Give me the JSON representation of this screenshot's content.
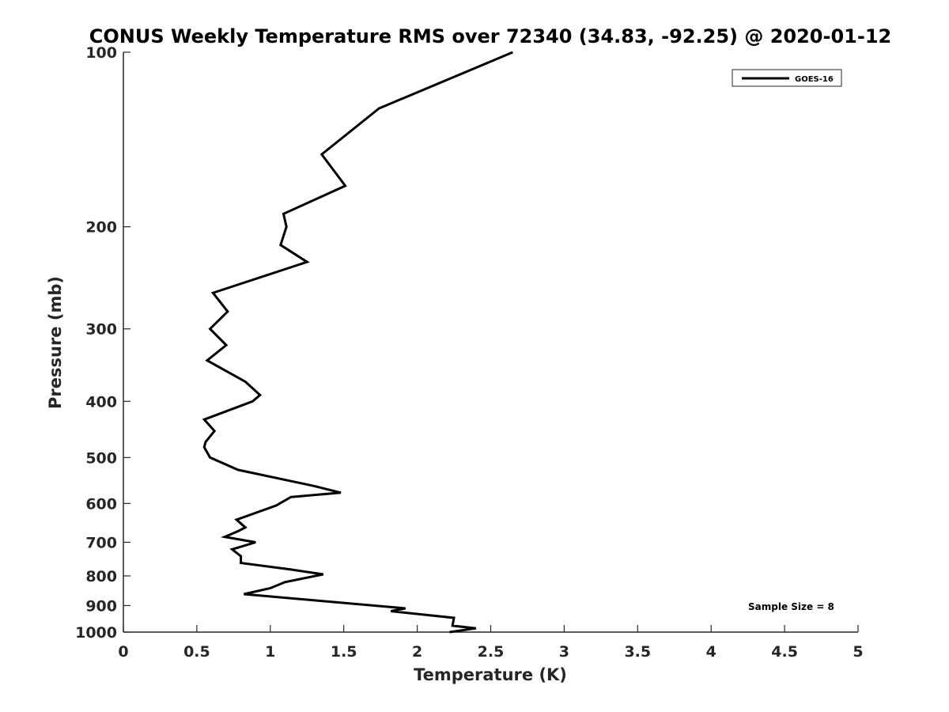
{
  "chart_data": {
    "type": "line",
    "title": "CONUS Weekly Temperature RMS over 72340 (34.83, -92.25) @ 2020-01-12",
    "xlabel": "Temperature (K)",
    "ylabel": "Pressure (mb)",
    "xlim": [
      0,
      5
    ],
    "ylim": [
      100,
      1000
    ],
    "y_scale": "log",
    "y_direction": "reversed",
    "x_ticks": [
      "0",
      "0.5",
      "1",
      "1.5",
      "2",
      "2.5",
      "3",
      "3.5",
      "4",
      "4.5",
      "5"
    ],
    "x_tick_values": [
      0,
      0.5,
      1,
      1.5,
      2,
      2.5,
      3,
      3.5,
      4,
      4.5,
      5
    ],
    "y_ticks": [
      "100",
      "200",
      "300",
      "400",
      "500",
      "600",
      "700",
      "800",
      "900",
      "1000"
    ],
    "y_tick_values": [
      100,
      200,
      300,
      400,
      500,
      600,
      700,
      800,
      900,
      1000
    ],
    "grid": false,
    "legend_position": "top-right",
    "series": [
      {
        "name": "GOES-16",
        "color": "#000000",
        "points": [
          [
            2.65,
            100
          ],
          [
            1.74,
            125
          ],
          [
            1.35,
            150
          ],
          [
            1.51,
            170
          ],
          [
            1.09,
            190
          ],
          [
            1.11,
            200
          ],
          [
            1.07,
            215
          ],
          [
            1.25,
            230
          ],
          [
            0.61,
            260
          ],
          [
            0.71,
            280
          ],
          [
            0.59,
            300
          ],
          [
            0.7,
            320
          ],
          [
            0.57,
            340
          ],
          [
            0.83,
            370
          ],
          [
            0.93,
            390
          ],
          [
            0.88,
            400
          ],
          [
            0.55,
            430
          ],
          [
            0.62,
            450
          ],
          [
            0.56,
            470
          ],
          [
            0.55,
            480
          ],
          [
            0.59,
            500
          ],
          [
            0.78,
            525
          ],
          [
            1.3,
            560
          ],
          [
            1.48,
            575
          ],
          [
            1.14,
            585
          ],
          [
            1.04,
            605
          ],
          [
            0.77,
            640
          ],
          [
            0.83,
            660
          ],
          [
            0.78,
            670
          ],
          [
            0.69,
            685
          ],
          [
            0.9,
            700
          ],
          [
            0.74,
            720
          ],
          [
            0.8,
            740
          ],
          [
            0.8,
            760
          ],
          [
            1.14,
            780
          ],
          [
            1.36,
            795
          ],
          [
            1.1,
            820
          ],
          [
            1.0,
            840
          ],
          [
            0.82,
            860
          ],
          [
            1.92,
            910
          ],
          [
            1.82,
            920
          ],
          [
            2.25,
            945
          ],
          [
            2.24,
            975
          ],
          [
            2.4,
            985
          ],
          [
            2.22,
            1000
          ]
        ]
      }
    ],
    "annotation": "Sample Size = 8"
  }
}
